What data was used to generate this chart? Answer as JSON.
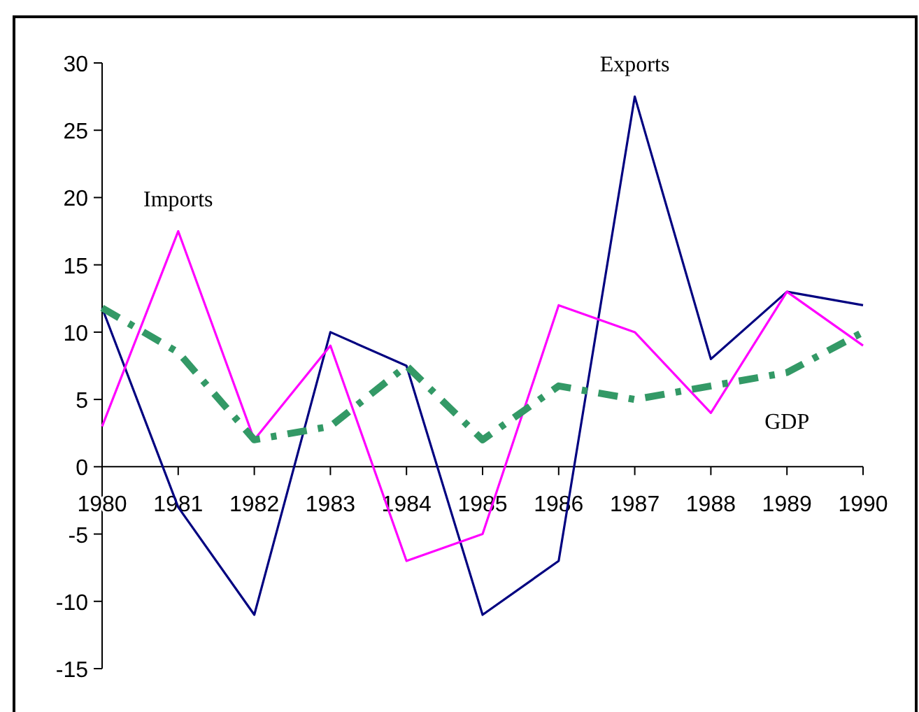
{
  "chart_data": {
    "type": "line",
    "categories": [
      "1980",
      "1981",
      "1982",
      "1983",
      "1984",
      "1985",
      "1986",
      "1987",
      "1988",
      "1989",
      "1990"
    ],
    "series": [
      {
        "name": "Exports",
        "color": "#000080",
        "line_style": "solid",
        "values": [
          11.8,
          -3,
          -11,
          10,
          7.5,
          -11,
          -7,
          27.5,
          8,
          13,
          12
        ]
      },
      {
        "name": "Imports",
        "color": "#ff00ff",
        "line_style": "solid",
        "values": [
          3,
          17.5,
          2,
          9,
          -7,
          -5,
          12,
          10,
          4,
          13,
          9
        ]
      },
      {
        "name": "GDP",
        "color": "#339966",
        "line_style": "dashed",
        "values": [
          11.8,
          8.5,
          2,
          3,
          7.5,
          2,
          6,
          5,
          6,
          7,
          10
        ]
      }
    ],
    "ylim": [
      -15,
      30
    ],
    "yticks": [
      -15,
      -10,
      -5,
      0,
      5,
      10,
      15,
      20,
      25,
      30
    ],
    "grid": false,
    "marker": "none"
  }
}
